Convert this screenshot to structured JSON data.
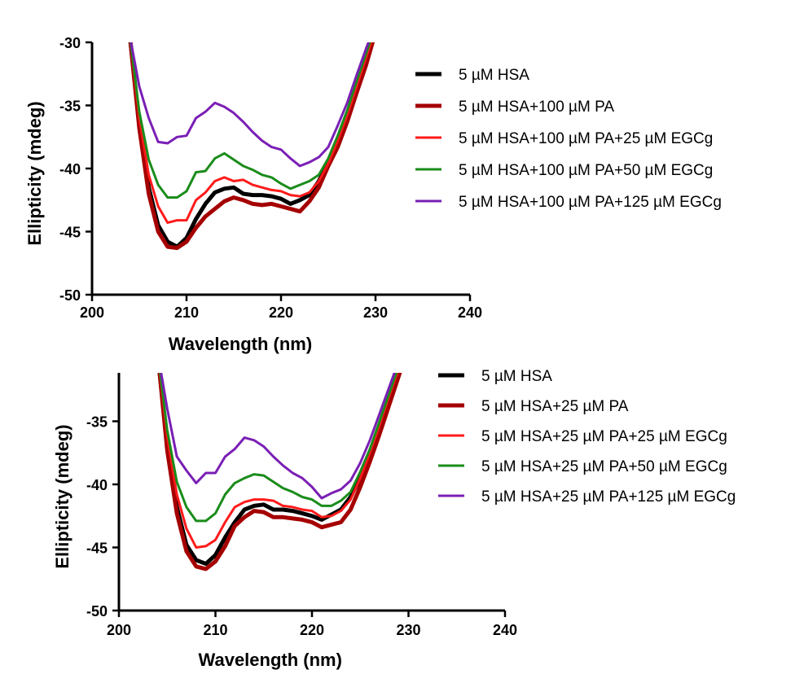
{
  "chart_data": [
    {
      "type": "line",
      "xlabel": "Wavelength (nm)",
      "ylabel": "Ellipticity (mdeg)",
      "xlim": [
        200,
        240
      ],
      "ylim": [
        -50,
        -30
      ],
      "xticks": [
        "200",
        "210",
        "220",
        "230",
        "240"
      ],
      "yticks": [
        "-30",
        "-35",
        "-40",
        "-45",
        "-50"
      ],
      "grid": false,
      "legend": "right",
      "x": [
        204,
        205,
        206,
        207,
        208,
        209,
        210,
        211,
        212,
        213,
        214,
        215,
        216,
        217,
        218,
        219,
        220,
        221,
        222,
        223,
        224,
        225,
        226,
        227,
        228,
        229,
        230
      ],
      "series": [
        {
          "name": "5 µM HSA",
          "color": "#000000",
          "values": [
            -29.5,
            -36.5,
            -41.5,
            -44.5,
            -45.8,
            -46.2,
            -45.5,
            -44.0,
            -42.8,
            -41.9,
            -41.6,
            -41.5,
            -42.0,
            -42.1,
            -42.1,
            -42.2,
            -42.4,
            -42.8,
            -42.5,
            -42.1,
            -41.0,
            -39.5,
            -38.0,
            -36.0,
            -33.8,
            -31.5,
            -29.0
          ],
          "width": 5
        },
        {
          "name": "5 µM HSA+100 µM PA",
          "color": "#a50000",
          "values": [
            -29.5,
            -36.8,
            -42.0,
            -45.0,
            -46.2,
            -46.3,
            -45.8,
            -44.7,
            -43.8,
            -43.2,
            -42.6,
            -42.3,
            -42.5,
            -42.8,
            -42.9,
            -42.8,
            -43.0,
            -43.2,
            -43.4,
            -42.6,
            -41.5,
            -39.8,
            -38.3,
            -36.3,
            -34.0,
            -31.8,
            -29.2
          ],
          "width": 5
        },
        {
          "name": "5 µM HSA+100 µM PA+25 µM EGCg",
          "color": "#ff1a1a",
          "values": [
            -29.5,
            -36.0,
            -40.5,
            -43.0,
            -44.3,
            -44.1,
            -44.1,
            -42.5,
            -41.9,
            -41.0,
            -40.7,
            -41.0,
            -40.9,
            -41.3,
            -41.5,
            -41.7,
            -41.8,
            -42.1,
            -42.2,
            -41.9,
            -41.0,
            -39.6,
            -37.8,
            -35.8,
            -33.5,
            -31.2,
            -29.0
          ],
          "width": 3
        },
        {
          "name": "5 µM HSA+100 µM PA+50 µM EGCg",
          "color": "#1a8c1a",
          "values": [
            -29.5,
            -35.5,
            -39.3,
            -41.3,
            -42.3,
            -42.3,
            -41.8,
            -40.3,
            -40.2,
            -39.2,
            -38.8,
            -39.3,
            -39.8,
            -40.1,
            -40.5,
            -40.7,
            -41.2,
            -41.6,
            -41.3,
            -41.0,
            -40.5,
            -39.2,
            -37.4,
            -35.4,
            -33.1,
            -30.9,
            -28.7
          ],
          "width": 3
        },
        {
          "name": "5 µM HSA+100 µM PA+125 µM EGCg",
          "color": "#7a1fb5",
          "values": [
            -29.5,
            -33.5,
            -36.0,
            -37.9,
            -38.0,
            -37.5,
            -37.4,
            -36.0,
            -35.5,
            -34.8,
            -35.1,
            -35.6,
            -36.3,
            -37.1,
            -37.8,
            -38.3,
            -38.5,
            -39.2,
            -39.8,
            -39.5,
            -39.1,
            -38.3,
            -36.6,
            -34.8,
            -32.6,
            -30.5,
            -28.5
          ],
          "width": 3
        }
      ]
    },
    {
      "type": "line",
      "xlabel": "Wavelength (nm)",
      "ylabel": "Ellipticity (mdeg)",
      "xlim": [
        200,
        240
      ],
      "ylim": [
        -50,
        -30
      ],
      "xticks": [
        "200",
        "210",
        "220",
        "230",
        "240"
      ],
      "yticks": [
        "-35",
        "-40",
        "-45",
        "-50"
      ],
      "grid": false,
      "legend": "right",
      "x": [
        204,
        205,
        206,
        207,
        208,
        209,
        210,
        211,
        212,
        213,
        214,
        215,
        216,
        217,
        218,
        219,
        220,
        221,
        222,
        223,
        224,
        225,
        226,
        227,
        228,
        229,
        230
      ],
      "series": [
        {
          "name": "5 µM HSA",
          "color": "#000000",
          "values": [
            -29.5,
            -37.0,
            -41.8,
            -44.8,
            -46.0,
            -46.3,
            -45.6,
            -44.2,
            -43.0,
            -42.0,
            -41.7,
            -41.6,
            -42.0,
            -42.0,
            -42.1,
            -42.3,
            -42.5,
            -42.8,
            -42.4,
            -42.0,
            -41.0,
            -39.5,
            -37.6,
            -35.5,
            -33.3,
            -31.1,
            -28.9
          ],
          "width": 5
        },
        {
          "name": "5 µM HSA+25 µM PA",
          "color": "#a50000",
          "values": [
            -29.5,
            -37.3,
            -42.3,
            -45.3,
            -46.5,
            -46.7,
            -46.1,
            -44.9,
            -43.3,
            -42.6,
            -42.1,
            -42.2,
            -42.6,
            -42.6,
            -42.7,
            -42.8,
            -43.0,
            -43.4,
            -43.2,
            -43.0,
            -42.0,
            -40.2,
            -38.2,
            -36.0,
            -33.7,
            -31.4,
            -29.1
          ],
          "width": 5
        },
        {
          "name": "5 µM HSA+25 µM PA+25 µM EGCg",
          "color": "#ff1a1a",
          "values": [
            -29.5,
            -36.2,
            -40.8,
            -43.5,
            -45.0,
            -44.9,
            -44.4,
            -43.0,
            -41.8,
            -41.4,
            -41.2,
            -41.2,
            -41.3,
            -41.7,
            -41.8,
            -42.0,
            -42.1,
            -42.6,
            -42.5,
            -42.1,
            -41.2,
            -39.5,
            -37.5,
            -35.3,
            -33.0,
            -30.8,
            -28.7
          ],
          "width": 3
        },
        {
          "name": "5 µM HSA+25 µM PA+50 µM EGCg",
          "color": "#1a8c1a",
          "values": [
            -29.5,
            -35.7,
            -39.8,
            -41.8,
            -42.9,
            -42.9,
            -42.3,
            -40.8,
            -39.9,
            -39.5,
            -39.2,
            -39.3,
            -39.8,
            -40.3,
            -40.6,
            -41.0,
            -41.2,
            -41.7,
            -41.7,
            -41.3,
            -40.6,
            -39.0,
            -37.2,
            -35.0,
            -32.8,
            -30.6,
            -28.5
          ],
          "width": 3
        },
        {
          "name": "5 µM HSA+25 µM PA+125 µM EGCg",
          "color": "#7a1fb5",
          "values": [
            -29.5,
            -34.0,
            -37.8,
            -38.9,
            -39.9,
            -39.1,
            -39.1,
            -37.8,
            -37.2,
            -36.3,
            -36.5,
            -37.0,
            -37.8,
            -38.5,
            -39.1,
            -39.5,
            -40.2,
            -41.1,
            -40.7,
            -40.4,
            -39.7,
            -38.3,
            -36.5,
            -34.4,
            -32.3,
            -30.2,
            -28.3
          ],
          "width": 3
        }
      ]
    }
  ]
}
